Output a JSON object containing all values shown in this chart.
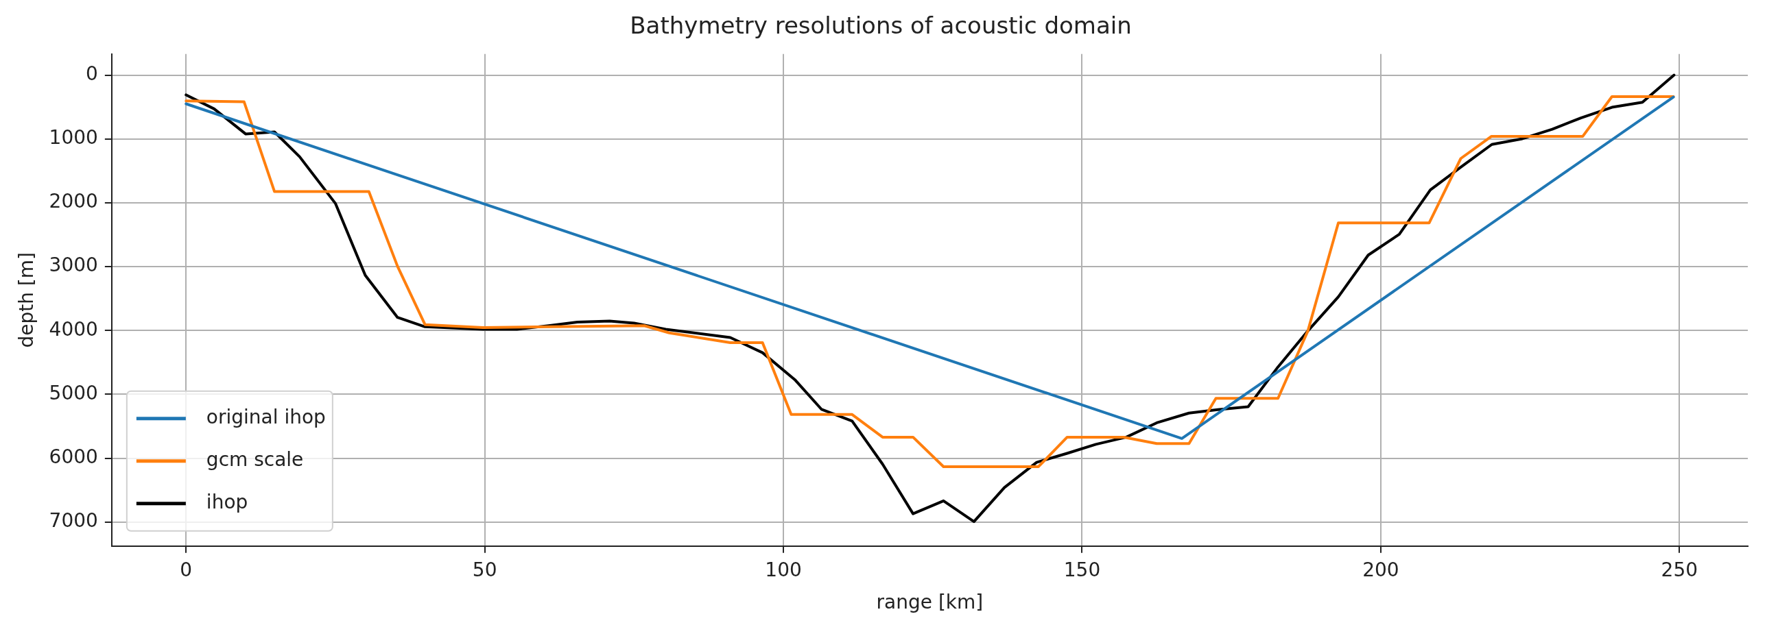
{
  "chart_data": {
    "type": "line",
    "title": "Bathymetry resolutions of acoustic domain",
    "xlabel": "range [km]",
    "ylabel": "depth [m]",
    "xlim": [
      -12.45,
      261.45
    ],
    "xticks": [
      0,
      50,
      100,
      150,
      200,
      250
    ],
    "ylim": [
      7375,
      -330
    ],
    "yticks": [
      0,
      1000,
      2000,
      3000,
      4000,
      5000,
      6000,
      7000
    ],
    "grid": true,
    "legend": "bottom left",
    "series": [
      {
        "name": "original ihop",
        "color": "#1f77b4",
        "x": [
          0,
          166.7,
          249
        ],
        "values": [
          450,
          5690,
          344
        ]
      },
      {
        "name": "gcm scale",
        "color": "#ff7f0e",
        "x": [
          0,
          9.7,
          14.8,
          30.6,
          35.4,
          40,
          49.7,
          76.7,
          80.9,
          91.1,
          96.5,
          101.3,
          111.5,
          116.6,
          121.7,
          126.8,
          142.7,
          147.5,
          157,
          162.5,
          167.9,
          172.4,
          182.8,
          187.8,
          192.9,
          208.1,
          213.4,
          218.5,
          233.8,
          238.7,
          249
        ],
        "values": [
          405,
          417,
          1824,
          1824,
          2995,
          3908,
          3953,
          3924,
          4037,
          4189,
          4189,
          5315,
          5315,
          5670,
          5670,
          6132,
          6132,
          5670,
          5670,
          5771,
          5771,
          5062,
          5062,
          4006,
          2315,
          2315,
          1306,
          961,
          961,
          338,
          338
        ]
      },
      {
        "name": "ihop",
        "color": "#000000",
        "x": [
          0,
          4.7,
          10,
          14.8,
          19,
          25,
          30,
          35.4,
          40,
          49.7,
          55.4,
          60.7,
          65.5,
          70.9,
          75,
          80.3,
          91.1,
          96.5,
          101.9,
          106.4,
          111.5,
          116.6,
          121.7,
          126.8,
          131.9,
          137,
          142.4,
          147.5,
          152.3,
          157.4,
          162.5,
          167.9,
          172.7,
          177.8,
          182.8,
          187.8,
          192.9,
          197.9,
          203.1,
          208.3,
          213.4,
          218.6,
          223.7,
          228.7,
          233.5,
          238.7,
          243.8,
          249.1
        ],
        "values": [
          310,
          529,
          923,
          890,
          1278,
          2010,
          3136,
          3795,
          3941,
          3981,
          3981,
          3924,
          3868,
          3851,
          3885,
          3981,
          4110,
          4347,
          4769,
          5236,
          5417,
          6092,
          6869,
          6667,
          6993,
          6458,
          6064,
          5923,
          5782,
          5670,
          5445,
          5293,
          5240,
          5193,
          4570,
          4006,
          3472,
          2819,
          2493,
          1798,
          1442,
          1086,
          997,
          849,
          671,
          504,
          427,
          0
        ]
      }
    ]
  }
}
